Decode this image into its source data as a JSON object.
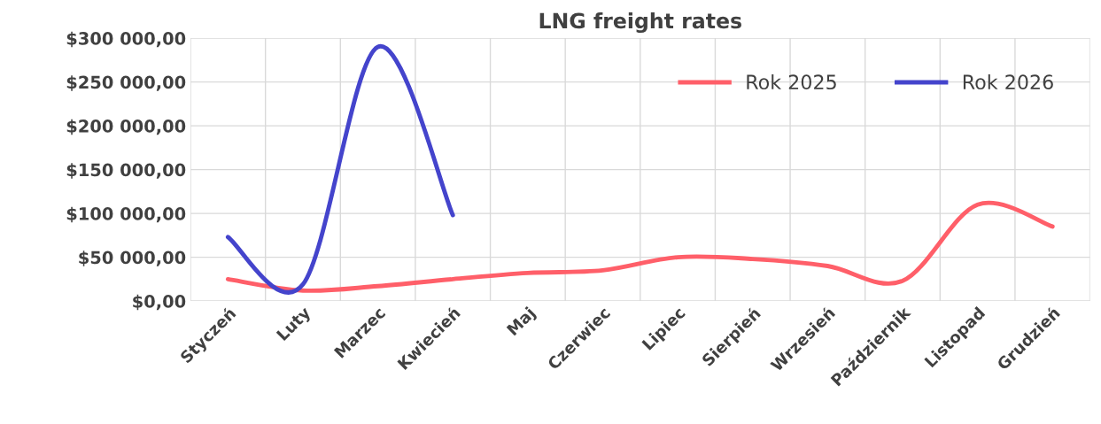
{
  "chart_data": {
    "type": "line",
    "title": "LNG freight rates",
    "categories": [
      "Styczeń",
      "Luty",
      "Marzec",
      "Kwiecień",
      "Maj",
      "Czerwiec",
      "Lipiec",
      "Sierpień",
      "Wrzesień",
      "Październik",
      "Listopad",
      "Grudzień"
    ],
    "series": [
      {
        "name": "Rok 2025",
        "color": "#ff5f69",
        "values": [
          25000,
          12000,
          17000,
          25000,
          32000,
          35000,
          50000,
          48000,
          40000,
          23000,
          110000,
          85000
        ]
      },
      {
        "name": "Rok 2026",
        "color": "#4444cc",
        "values": [
          73000,
          19000,
          290000,
          98000,
          null,
          null,
          null,
          null,
          null,
          null,
          null,
          null
        ]
      }
    ],
    "ylim": [
      0,
      300000
    ],
    "yticks": [
      {
        "value": 0,
        "label": "$0,00"
      },
      {
        "value": 50000,
        "label": "$50 000,00"
      },
      {
        "value": 100000,
        "label": "$100 000,00"
      },
      {
        "value": 150000,
        "label": "$150 000,00"
      },
      {
        "value": 200000,
        "label": "$200 000,00"
      },
      {
        "value": 250000,
        "label": "$250 000,00"
      },
      {
        "value": 300000,
        "label": "$300 000,00"
      }
    ],
    "grid": true,
    "legend": "top right",
    "marker": "none",
    "line_style": "solid"
  }
}
